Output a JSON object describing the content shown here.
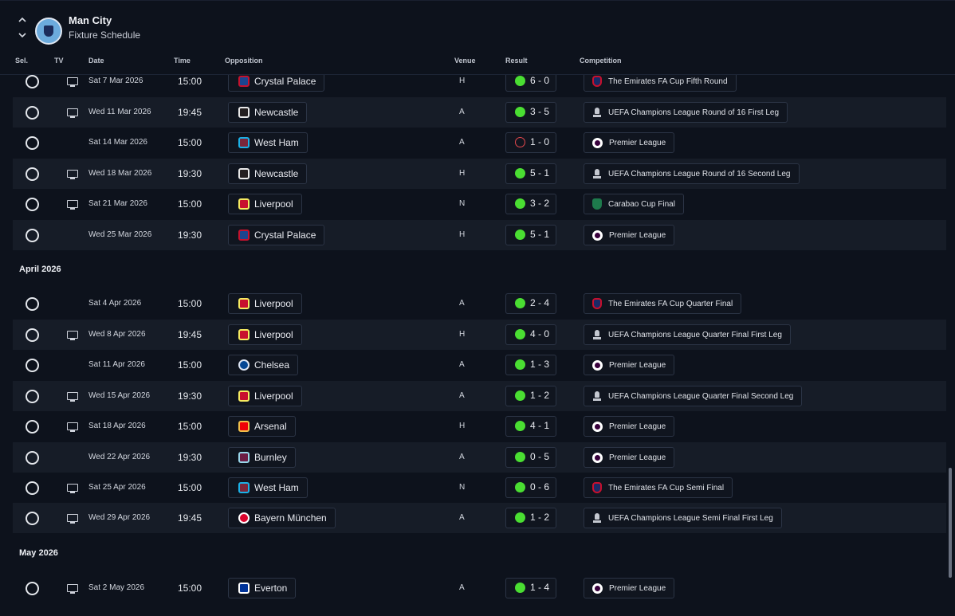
{
  "header": {
    "club_name": "Man City",
    "subtitle": "Fixture Schedule"
  },
  "columns": {
    "sel": "Sel.",
    "tv": "TV",
    "date": "Date",
    "time": "Time",
    "opposition": "Opposition",
    "venue": "Venue",
    "result": "Result",
    "competition": "Competition"
  },
  "months": [
    "April 2026",
    "May 2026"
  ],
  "fixtures": [
    {
      "tv": true,
      "date": "Sat 7 Mar 2026",
      "time": "15:00",
      "opponent": "Crystal Palace",
      "venue": "H",
      "result": "6 - 0",
      "outcome": "win",
      "competition": "The Emirates FA Cup Fifth Round",
      "comp_icon": "fa-cup-icon"
    },
    {
      "tv": true,
      "date": "Wed 11 Mar 2026",
      "time": "19:45",
      "opponent": "Newcastle",
      "venue": "A",
      "result": "3 - 5",
      "outcome": "win",
      "competition": "UEFA Champions League Round of 16  First Leg",
      "comp_icon": "ucl-trophy-icon"
    },
    {
      "tv": false,
      "date": "Sat 14 Mar 2026",
      "time": "15:00",
      "opponent": "West Ham",
      "venue": "A",
      "result": "1 - 0",
      "outcome": "loss",
      "competition": "Premier League",
      "comp_icon": "premier-league-icon"
    },
    {
      "tv": true,
      "date": "Wed 18 Mar 2026",
      "time": "19:30",
      "opponent": "Newcastle",
      "venue": "H",
      "result": "5 - 1",
      "outcome": "win",
      "competition": "UEFA Champions League Round of 16  Second Leg",
      "comp_icon": "ucl-trophy-icon"
    },
    {
      "tv": true,
      "date": "Sat 21 Mar 2026",
      "time": "15:00",
      "opponent": "Liverpool",
      "venue": "N",
      "result": "3 - 2",
      "outcome": "win",
      "competition": "Carabao Cup Final",
      "comp_icon": "carabao-cup-icon"
    },
    {
      "tv": false,
      "date": "Wed 25 Mar 2026",
      "time": "19:30",
      "opponent": "Crystal Palace",
      "venue": "H",
      "result": "5 - 1",
      "outcome": "win",
      "competition": "Premier League",
      "comp_icon": "premier-league-icon"
    },
    {
      "tv": false,
      "date": "Sat 4 Apr 2026",
      "time": "15:00",
      "opponent": "Liverpool",
      "venue": "A",
      "result": "2 - 4",
      "outcome": "win",
      "competition": "The Emirates FA Cup Quarter Final",
      "comp_icon": "fa-cup-icon"
    },
    {
      "tv": true,
      "date": "Wed 8 Apr 2026",
      "time": "19:45",
      "opponent": "Liverpool",
      "venue": "H",
      "result": "4 - 0",
      "outcome": "win",
      "competition": "UEFA Champions League Quarter Final First Leg",
      "comp_icon": "ucl-trophy-icon"
    },
    {
      "tv": false,
      "date": "Sat 11 Apr 2026",
      "time": "15:00",
      "opponent": "Chelsea",
      "venue": "A",
      "result": "1 - 3",
      "outcome": "win",
      "competition": "Premier League",
      "comp_icon": "premier-league-icon"
    },
    {
      "tv": true,
      "date": "Wed 15 Apr 2026",
      "time": "19:30",
      "opponent": "Liverpool",
      "venue": "A",
      "result": "1 - 2",
      "outcome": "win",
      "competition": "UEFA Champions League Quarter Final Second Leg",
      "comp_icon": "ucl-trophy-icon"
    },
    {
      "tv": true,
      "date": "Sat 18 Apr 2026",
      "time": "15:00",
      "opponent": "Arsenal",
      "venue": "H",
      "result": "4 - 1",
      "outcome": "win",
      "competition": "Premier League",
      "comp_icon": "premier-league-icon"
    },
    {
      "tv": false,
      "date": "Wed 22 Apr 2026",
      "time": "19:30",
      "opponent": "Burnley",
      "venue": "A",
      "result": "0 - 5",
      "outcome": "win",
      "competition": "Premier League",
      "comp_icon": "premier-league-icon"
    },
    {
      "tv": true,
      "date": "Sat 25 Apr 2026",
      "time": "15:00",
      "opponent": "West Ham",
      "venue": "N",
      "result": "0 - 6",
      "outcome": "win",
      "competition": "The Emirates FA Cup Semi Final",
      "comp_icon": "fa-cup-icon"
    },
    {
      "tv": true,
      "date": "Wed 29 Apr 2026",
      "time": "19:45",
      "opponent": "Bayern München",
      "venue": "A",
      "result": "1 - 2",
      "outcome": "win",
      "competition": "UEFA Champions League Semi Final First Leg",
      "comp_icon": "ucl-trophy-icon"
    },
    {
      "tv": true,
      "date": "Sat 2 May 2026",
      "time": "15:00",
      "opponent": "Everton",
      "venue": "A",
      "result": "1 - 4",
      "outcome": "win",
      "competition": "Premier League",
      "comp_icon": "premier-league-icon"
    }
  ],
  "colors": {
    "win": "#4ade32",
    "loss": "#e5484d",
    "background": "#0d121c",
    "row_alt": "#161c27"
  }
}
